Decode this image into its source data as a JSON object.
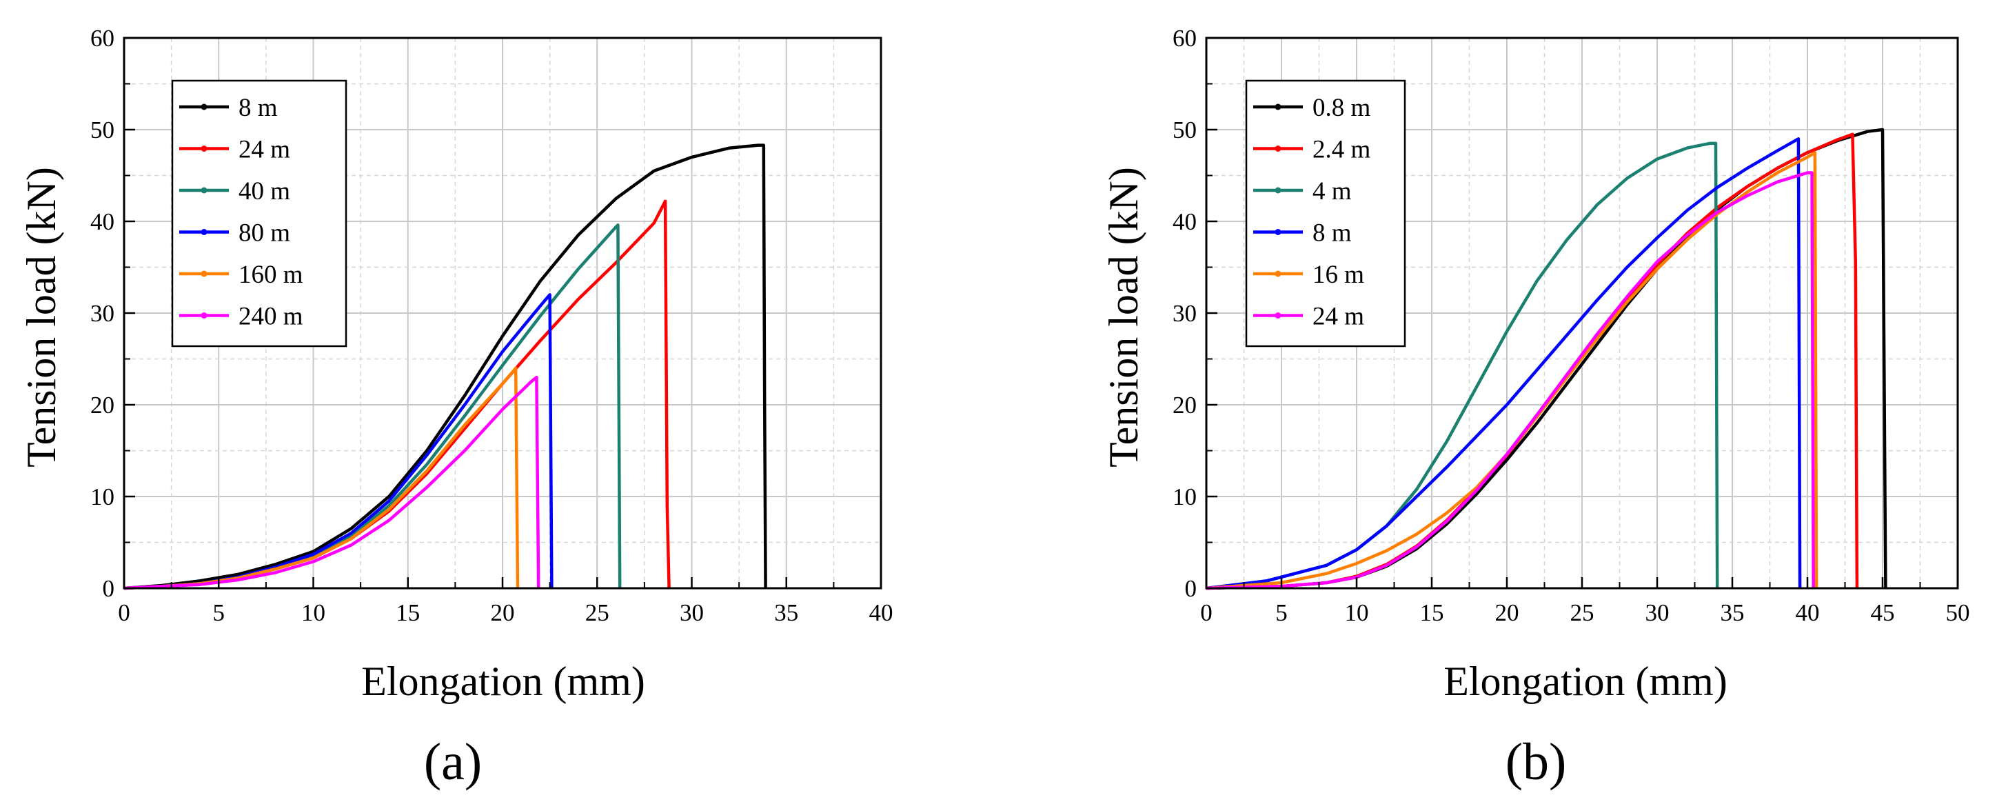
{
  "figure": {
    "panel_labels": [
      "(a)",
      "(b)"
    ]
  },
  "chart_data": [
    {
      "type": "line",
      "panel": "(a)",
      "xlabel": "Elongation (mm)",
      "ylabel": "Tension load (kN)",
      "xlim": [
        0,
        40
      ],
      "ylim": [
        0,
        60
      ],
      "xticks": [
        0,
        5,
        10,
        15,
        20,
        25,
        30,
        35,
        40
      ],
      "yticks": [
        0,
        10,
        20,
        30,
        40,
        50,
        60
      ],
      "grid": true,
      "legend_position": "top-left",
      "series": [
        {
          "name": "8 m",
          "color": "#000000",
          "x": [
            0,
            2,
            4,
            6,
            8,
            10,
            12,
            14,
            16,
            18,
            20,
            22,
            24,
            26,
            28,
            30,
            32,
            33.5,
            33.8,
            33.85,
            33.9
          ],
          "y": [
            0,
            0.3,
            0.8,
            1.5,
            2.6,
            4,
            6.5,
            10,
            15,
            21,
            27.5,
            33.5,
            38.5,
            42.5,
            45.5,
            47,
            48,
            48.3,
            48.3,
            20,
            0
          ]
        },
        {
          "name": "24 m",
          "color": "#ff0000",
          "x": [
            0,
            2,
            4,
            6,
            8,
            10,
            12,
            14,
            16,
            18,
            20,
            22,
            24,
            26,
            28,
            28.6,
            28.7,
            28.8
          ],
          "y": [
            0,
            0.2,
            0.5,
            1.1,
            2.1,
            3.3,
            5.4,
            8.4,
            12.5,
            17.4,
            22.3,
            27,
            31.5,
            35.5,
            39.8,
            42.2,
            9,
            0
          ]
        },
        {
          "name": "40 m",
          "color": "#1a8070",
          "x": [
            0,
            2,
            4,
            6,
            8,
            10,
            12,
            14,
            16,
            18,
            20,
            22,
            24,
            26,
            26.1,
            26.2
          ],
          "y": [
            0,
            0.2,
            0.5,
            1.1,
            2.1,
            3.4,
            5.7,
            9,
            13.5,
            18.8,
            24.3,
            29.7,
            34.8,
            39.4,
            39.6,
            0
          ]
        },
        {
          "name": "80 m",
          "color": "#0000ff",
          "x": [
            0,
            2,
            4,
            6,
            8,
            10,
            12,
            14,
            16,
            18,
            20,
            22,
            22.5,
            22.6
          ],
          "y": [
            0,
            0.2,
            0.5,
            1.2,
            2.3,
            3.7,
            6,
            9.5,
            14.5,
            20,
            25.8,
            30.8,
            32,
            0
          ]
        },
        {
          "name": "160 m",
          "color": "#ff8000",
          "x": [
            0,
            2,
            4,
            6,
            8,
            10,
            12,
            14,
            16,
            18,
            20,
            20.7,
            20.8
          ],
          "y": [
            0,
            0.2,
            0.5,
            1.1,
            2.1,
            3.3,
            5.4,
            8.6,
            12.8,
            17.8,
            22.3,
            24,
            0
          ]
        },
        {
          "name": "240 m",
          "color": "#ff00ff",
          "x": [
            0,
            2,
            4,
            6,
            8,
            10,
            12,
            14,
            16,
            18,
            20,
            21.5,
            21.8,
            21.9
          ],
          "y": [
            0,
            0.2,
            0.4,
            0.9,
            1.7,
            2.9,
            4.7,
            7.4,
            11,
            15,
            19.5,
            22.5,
            23,
            0
          ]
        }
      ]
    },
    {
      "type": "line",
      "panel": "(b)",
      "xlabel": "Elongation (mm)",
      "ylabel": "Tension load (kN)",
      "xlim": [
        0,
        50
      ],
      "ylim": [
        0,
        60
      ],
      "xticks": [
        0,
        5,
        10,
        15,
        20,
        25,
        30,
        35,
        40,
        45,
        50
      ],
      "yticks": [
        0,
        10,
        20,
        30,
        40,
        50,
        60
      ],
      "grid": true,
      "legend_position": "top-left",
      "series": [
        {
          "name": "0.8 m",
          "color": "#000000",
          "x": [
            0,
            5,
            8,
            10,
            12,
            14,
            16,
            18,
            20,
            22,
            24,
            26,
            28,
            30,
            32,
            34,
            36,
            38,
            40,
            42,
            44,
            45,
            45.1,
            45.2
          ],
          "y": [
            0,
            0.2,
            0.6,
            1.2,
            2.4,
            4.3,
            7,
            10.3,
            14,
            18,
            22.3,
            26.6,
            30.9,
            34.8,
            38.3,
            41.3,
            43.8,
            45.8,
            47.5,
            48.8,
            49.8,
            50,
            25,
            0
          ]
        },
        {
          "name": "2.4 m",
          "color": "#ff0000",
          "x": [
            0,
            5,
            8,
            10,
            12,
            14,
            16,
            18,
            20,
            22,
            24,
            26,
            28,
            30,
            32,
            34,
            36,
            38,
            40,
            42,
            43,
            43.2,
            43.3
          ],
          "y": [
            0,
            0.2,
            0.6,
            1.3,
            2.6,
            4.6,
            7.4,
            10.8,
            14.5,
            18.7,
            23,
            27.3,
            31.5,
            35.3,
            38.7,
            41.5,
            43.8,
            45.8,
            47.5,
            48.9,
            49.5,
            35.5,
            0
          ]
        },
        {
          "name": "4 m",
          "color": "#1a8070",
          "x": [
            0,
            4,
            8,
            10,
            12,
            14,
            16,
            18,
            20,
            22,
            24,
            26,
            28,
            30,
            32,
            33.5,
            33.9,
            34
          ],
          "y": [
            0,
            0.8,
            2.5,
            4.2,
            6.8,
            10.8,
            16,
            22,
            28,
            33.5,
            38,
            41.8,
            44.7,
            46.8,
            48,
            48.5,
            48.5,
            0
          ]
        },
        {
          "name": "8 m",
          "color": "#0000ff",
          "x": [
            0,
            4,
            8,
            10,
            12,
            14,
            16,
            18,
            20,
            22,
            24,
            26,
            28,
            30,
            32,
            34,
            36,
            38,
            39.4,
            39.5
          ],
          "y": [
            0,
            0.8,
            2.5,
            4.2,
            6.8,
            10,
            13.2,
            16.6,
            20,
            23.8,
            27.6,
            31.4,
            35,
            38.2,
            41.2,
            43.7,
            45.8,
            47.7,
            49,
            0
          ]
        },
        {
          "name": "16 m",
          "color": "#ff8000",
          "x": [
            0,
            5,
            8,
            10,
            12,
            14,
            16,
            18,
            20,
            22,
            24,
            26,
            28,
            30,
            32,
            34,
            36,
            38,
            40,
            40.5,
            40.6
          ],
          "y": [
            0,
            0.6,
            1.6,
            2.7,
            4.1,
            5.9,
            8.2,
            11,
            14.6,
            18.7,
            23,
            27.2,
            31.2,
            34.8,
            38,
            40.8,
            43.2,
            45.3,
            47,
            47.5,
            0
          ]
        },
        {
          "name": "24 m",
          "color": "#ff00ff",
          "x": [
            0,
            5,
            8,
            10,
            12,
            14,
            16,
            18,
            20,
            22,
            24,
            26,
            28,
            30,
            32,
            34,
            36,
            38,
            40,
            40.3,
            40.4
          ],
          "y": [
            0,
            0.2,
            0.6,
            1.2,
            2.5,
            4.5,
            7.3,
            10.7,
            14.6,
            18.9,
            23.3,
            27.7,
            31.8,
            35.6,
            38.5,
            41,
            42.8,
            44.3,
            45.3,
            45.3,
            0
          ]
        }
      ]
    }
  ]
}
